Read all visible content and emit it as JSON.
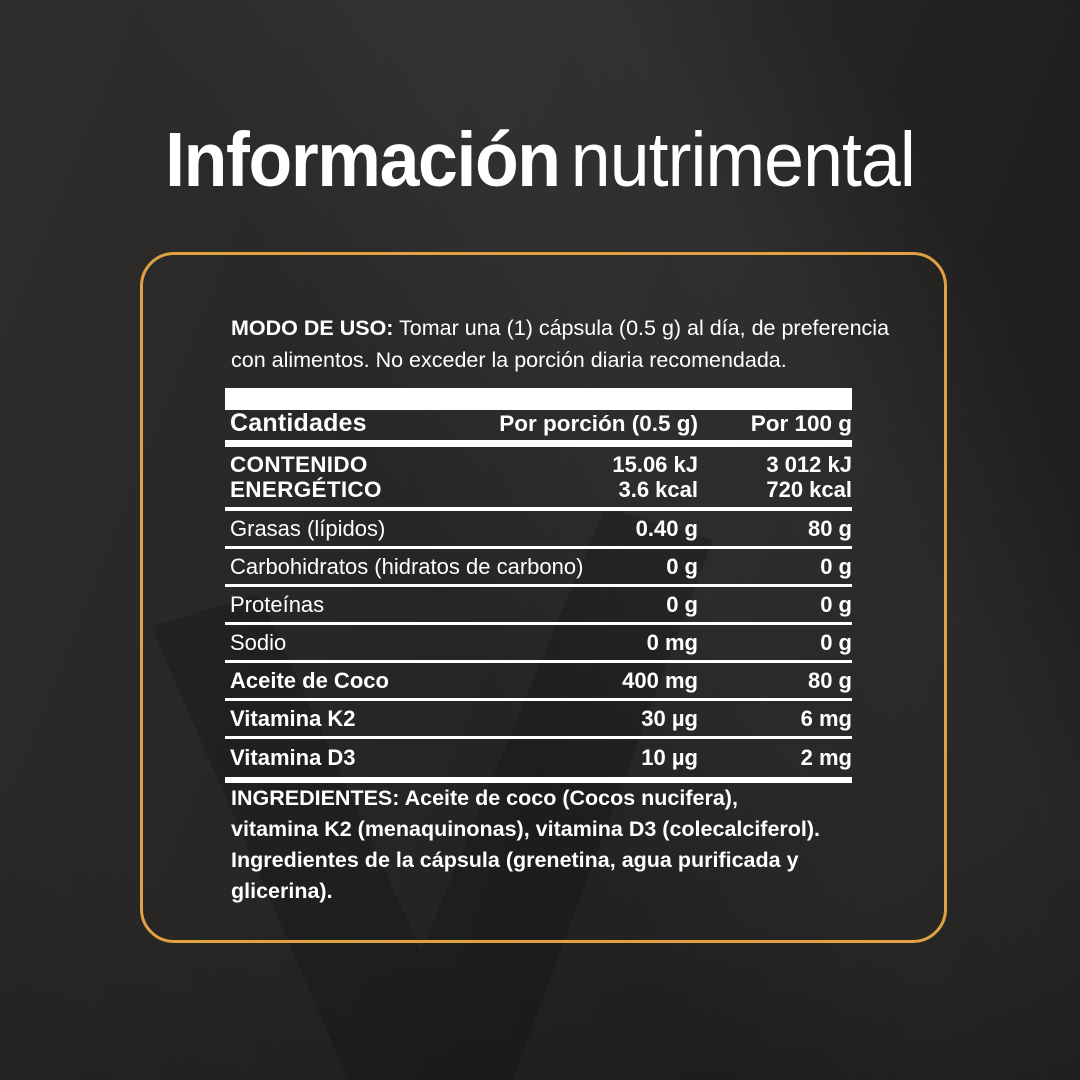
{
  "title": {
    "bold": "Información",
    "light": "nutrimental"
  },
  "panel": {
    "border_color": "#dfa243"
  },
  "usage": {
    "label": "MODO DE USO:",
    "line1_rest": " Tomar una (1) cápsula (0.5 g) al día, de preferencia",
    "line2": "con alimentos. No exceder la porción diaria recomendada."
  },
  "table": {
    "headers": {
      "quantities": "Cantidades",
      "per_portion": "Por porción (0.5 g)",
      "per_100": "Por 100 g"
    },
    "energy": {
      "label_line1": "CONTENIDO",
      "label_line2": "ENERGÉTICO",
      "portion_kj": "15.06 kJ",
      "portion_kcal": "3.6 kcal",
      "per100_kj": "3 012 kJ",
      "per100_kcal": "720 kcal"
    },
    "rows": [
      {
        "label": "Grasas (lípidos)",
        "per_portion": "0.40 g",
        "per_100": "80 g"
      },
      {
        "label": "Carbohidratos (hidratos de carbono)",
        "per_portion": "0 g",
        "per_100": "0 g"
      },
      {
        "label": "Proteínas",
        "per_portion": "0 g",
        "per_100": "0 g"
      },
      {
        "label": "Sodio",
        "per_portion": "0 mg",
        "per_100": "0 g"
      },
      {
        "label": "Aceite de Coco",
        "per_portion": "400 mg",
        "per_100": "80 g"
      },
      {
        "label": "Vitamina K2",
        "per_portion": "30 µg",
        "per_100": "6 mg"
      },
      {
        "label": "Vitamina D3",
        "per_portion": "10 µg",
        "per_100": "2 mg"
      }
    ]
  },
  "ingredients": {
    "lines": [
      "INGREDIENTES: Aceite de coco (Cocos nucifera),",
      "vitamina K2 (menaquinonas), vitamina D3 (colecalciferol).",
      "Ingredientes de la cápsula (grenetina, agua purificada y",
      "glicerina)."
    ]
  }
}
